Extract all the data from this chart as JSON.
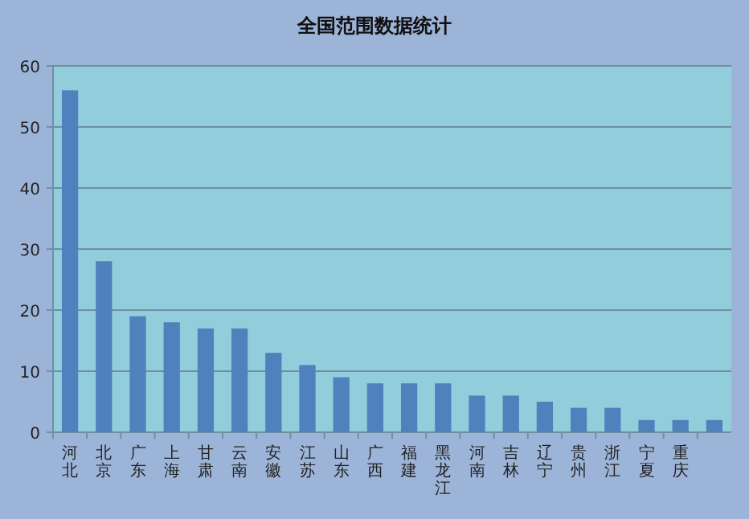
{
  "chart_data": {
    "type": "bar",
    "title": "全国范围数据统计",
    "categories": [
      "河北",
      "北京",
      "广东",
      "上海",
      "甘肃",
      "云南",
      "安徽",
      "江苏",
      "山东",
      "广西",
      "福建",
      "黑龙江",
      "河南",
      "吉林",
      "辽宁",
      "贵州",
      "浙江",
      "宁夏",
      "重庆",
      null
    ],
    "values": [
      56,
      28,
      19,
      18,
      17,
      17,
      13,
      11,
      9,
      8,
      8,
      8,
      6,
      6,
      5,
      4,
      4,
      2,
      2,
      2
    ],
    "color": "#4f81bd",
    "ylim": [
      0,
      60
    ],
    "yticks": [
      0,
      10,
      20,
      30,
      40,
      50,
      60
    ],
    "grid": "y"
  }
}
